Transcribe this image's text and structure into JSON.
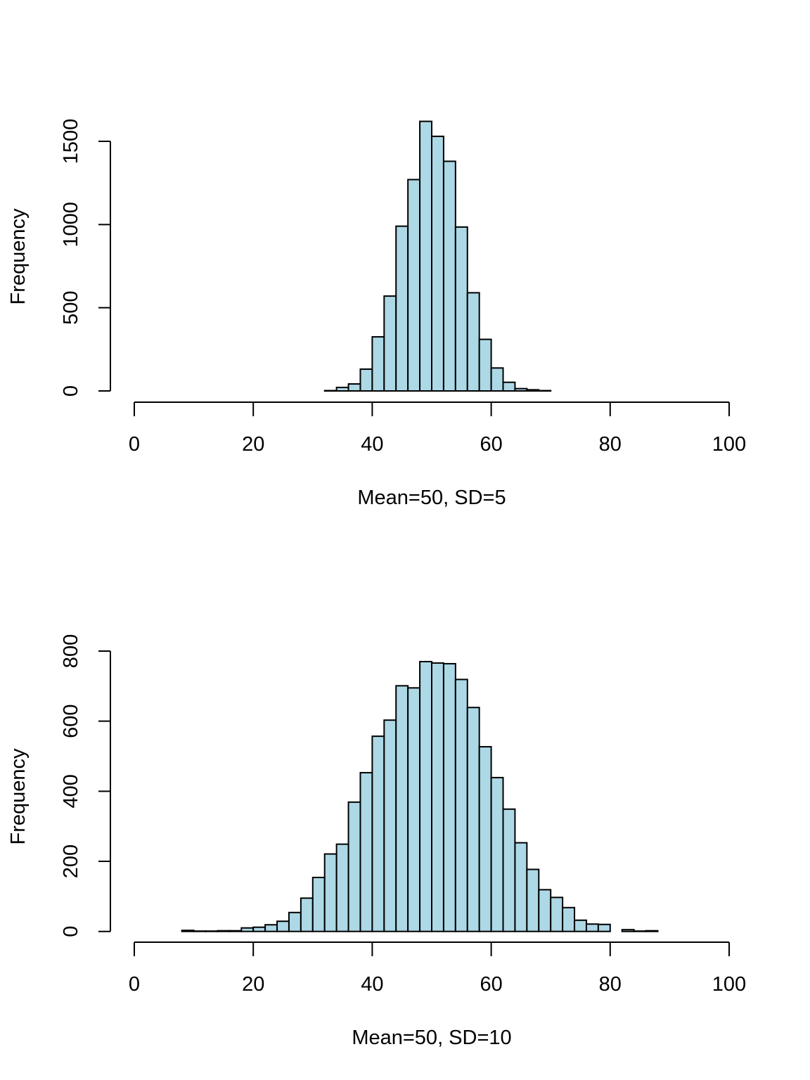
{
  "chart_data": [
    {
      "type": "bar",
      "subtype": "histogram",
      "title": "",
      "xlabel": "Mean=50, SD=5",
      "ylabel": "Frequency",
      "xlim": [
        0,
        100
      ],
      "ylim": [
        0,
        1500
      ],
      "x_ticks": [
        0,
        20,
        40,
        60,
        80,
        100
      ],
      "x_tick_labels": [
        "0",
        "20",
        "40",
        "60",
        "80",
        "100"
      ],
      "y_ticks": [
        0,
        500,
        1000,
        1500
      ],
      "y_tick_labels": [
        "0",
        "500",
        "1000",
        "1500"
      ],
      "bar_color": "#add8e6",
      "grid": false,
      "bin_width": 2,
      "bin_starts": [
        32,
        34,
        36,
        38,
        40,
        42,
        44,
        46,
        48,
        50,
        52,
        54,
        56,
        58,
        60,
        62,
        64,
        66,
        68
      ],
      "values": [
        2,
        21,
        42,
        131,
        325,
        570,
        990,
        1270,
        1620,
        1530,
        1380,
        985,
        590,
        310,
        138,
        52,
        14,
        7,
        2
      ]
    },
    {
      "type": "bar",
      "subtype": "histogram",
      "title": "",
      "xlabel": "Mean=50, SD=10",
      "ylabel": "Frequency",
      "xlim": [
        0,
        100
      ],
      "ylim": [
        0,
        800
      ],
      "x_ticks": [
        0,
        20,
        40,
        60,
        80,
        100
      ],
      "x_tick_labels": [
        "0",
        "20",
        "40",
        "60",
        "80",
        "100"
      ],
      "y_ticks": [
        0,
        200,
        400,
        600,
        800
      ],
      "y_tick_labels": [
        "0",
        "200",
        "400",
        "600",
        "800"
      ],
      "bar_color": "#add8e6",
      "grid": false,
      "bin_width": 2,
      "bin_starts": [
        8,
        10,
        12,
        14,
        16,
        18,
        20,
        22,
        24,
        26,
        28,
        30,
        32,
        34,
        36,
        38,
        40,
        42,
        44,
        46,
        48,
        50,
        52,
        54,
        56,
        58,
        60,
        62,
        64,
        66,
        68,
        70,
        72,
        74,
        76,
        78,
        80,
        82,
        84,
        86
      ],
      "values": [
        3,
        1,
        1,
        2,
        2,
        10,
        12,
        19,
        29,
        54,
        95,
        154,
        221,
        249,
        369,
        453,
        557,
        603,
        701,
        695,
        770,
        766,
        764,
        719,
        639,
        527,
        439,
        349,
        253,
        177,
        119,
        97,
        68,
        32,
        21,
        20,
        0,
        5,
        1,
        2
      ]
    }
  ]
}
